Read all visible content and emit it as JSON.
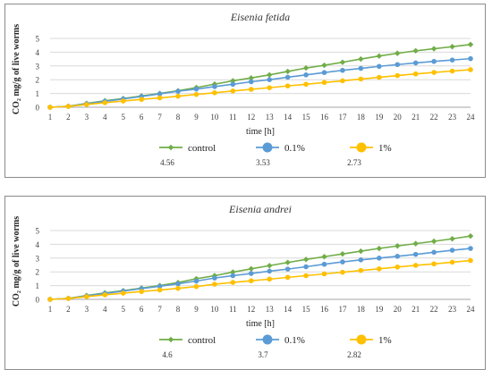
{
  "chart_data": [
    {
      "type": "line",
      "title": "Eisenia fetida",
      "xlabel": "time [h]",
      "ylabel": "CO₂ mg/g of live worms",
      "x": [
        1,
        2,
        3,
        4,
        5,
        6,
        7,
        8,
        9,
        10,
        11,
        12,
        13,
        14,
        15,
        16,
        17,
        18,
        19,
        20,
        21,
        22,
        23,
        24
      ],
      "ylim": [
        0,
        5
      ],
      "yticks": [
        0,
        1,
        2,
        3,
        4,
        5
      ],
      "grid": true,
      "legend": "bottom",
      "series": [
        {
          "name": "control",
          "color": "#70ad47",
          "marker": "diamond",
          "values": [
            0,
            0.07,
            0.28,
            0.47,
            0.63,
            0.82,
            1.0,
            1.2,
            1.43,
            1.68,
            1.92,
            2.13,
            2.35,
            2.6,
            2.85,
            3.05,
            3.27,
            3.5,
            3.72,
            3.92,
            4.1,
            4.25,
            4.4,
            4.56
          ],
          "final_label": "4.56"
        },
        {
          "name": "0.1%",
          "color": "#5b9bd5",
          "marker": "circle",
          "values": [
            0,
            0.07,
            0.25,
            0.43,
            0.6,
            0.78,
            0.97,
            1.16,
            1.32,
            1.5,
            1.67,
            1.85,
            2.0,
            2.18,
            2.35,
            2.52,
            2.68,
            2.82,
            2.97,
            3.1,
            3.22,
            3.33,
            3.43,
            3.53
          ],
          "final_label": "3.53"
        },
        {
          "name": "1%",
          "color": "#ffc000",
          "marker": "circle",
          "values": [
            0,
            0.06,
            0.2,
            0.33,
            0.45,
            0.57,
            0.68,
            0.8,
            0.93,
            1.05,
            1.18,
            1.3,
            1.42,
            1.55,
            1.67,
            1.8,
            1.92,
            2.05,
            2.17,
            2.3,
            2.42,
            2.53,
            2.63,
            2.73
          ],
          "final_label": "2.73"
        }
      ]
    },
    {
      "type": "line",
      "title": "Eisenia andrei",
      "xlabel": "time [h]",
      "ylabel": "CO₂ mg/g of live worms",
      "x": [
        1,
        2,
        3,
        4,
        5,
        6,
        7,
        8,
        9,
        10,
        11,
        12,
        13,
        14,
        15,
        16,
        17,
        18,
        19,
        20,
        21,
        22,
        23,
        24
      ],
      "ylim": [
        0,
        5
      ],
      "yticks": [
        0,
        1,
        2,
        3,
        4,
        5
      ],
      "grid": true,
      "legend": "bottom",
      "series": [
        {
          "name": "control",
          "color": "#70ad47",
          "marker": "diamond",
          "values": [
            0,
            0.07,
            0.28,
            0.47,
            0.63,
            0.82,
            1.0,
            1.22,
            1.5,
            1.72,
            1.98,
            2.22,
            2.45,
            2.68,
            2.9,
            3.1,
            3.3,
            3.5,
            3.7,
            3.88,
            4.05,
            4.22,
            4.4,
            4.6
          ],
          "final_label": "4.6"
        },
        {
          "name": "0.1%",
          "color": "#5b9bd5",
          "marker": "circle",
          "values": [
            0,
            0.07,
            0.25,
            0.43,
            0.6,
            0.78,
            0.95,
            1.13,
            1.33,
            1.55,
            1.72,
            1.88,
            2.05,
            2.2,
            2.37,
            2.55,
            2.72,
            2.87,
            3.0,
            3.13,
            3.27,
            3.42,
            3.57,
            3.7
          ],
          "final_label": "3.7"
        },
        {
          "name": "1%",
          "color": "#ffc000",
          "marker": "circle",
          "values": [
            0,
            0.06,
            0.2,
            0.33,
            0.45,
            0.57,
            0.68,
            0.8,
            0.93,
            1.1,
            1.23,
            1.35,
            1.47,
            1.6,
            1.72,
            1.85,
            1.97,
            2.1,
            2.22,
            2.35,
            2.47,
            2.58,
            2.7,
            2.82
          ],
          "final_label": "2.82"
        }
      ]
    }
  ]
}
